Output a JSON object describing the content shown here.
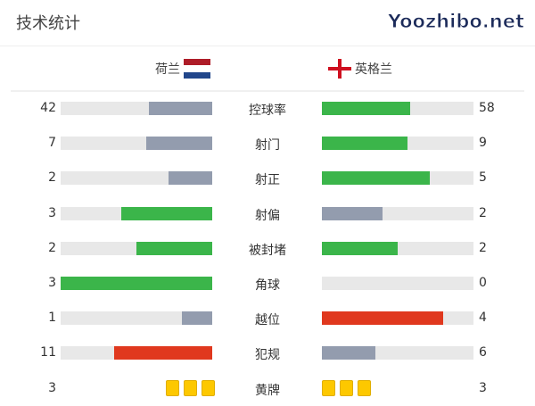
{
  "title": "技术统计",
  "home": {
    "name": "荷兰",
    "flag": [
      "#ae1c28",
      "#ffffff",
      "#21468b"
    ]
  },
  "away": {
    "name": "英格兰",
    "flag": "england-cross-icon"
  },
  "colors": {
    "green": "#3bb54a",
    "gray": "#939cae",
    "red": "#e0381e",
    "track": "#e8e8e8",
    "yellow": "#fdc800"
  },
  "stats": [
    {
      "label": "控球率",
      "home": "42",
      "away": "58",
      "home_color": "gray",
      "away_color": "green"
    },
    {
      "label": "射门",
      "home": "7",
      "away": "9",
      "home_color": "gray",
      "away_color": "green"
    },
    {
      "label": "射正",
      "home": "2",
      "away": "5",
      "home_color": "gray",
      "away_color": "green"
    },
    {
      "label": "射偏",
      "home": "3",
      "away": "2",
      "home_color": "green",
      "away_color": "gray"
    },
    {
      "label": "被封堵",
      "home": "2",
      "away": "2",
      "home_color": "green",
      "away_color": "green"
    },
    {
      "label": "角球",
      "home": "3",
      "away": "0",
      "home_color": "green",
      "away_color": "gray"
    },
    {
      "label": "越位",
      "home": "1",
      "away": "4",
      "home_color": "gray",
      "away_color": "red"
    },
    {
      "label": "犯规",
      "home": "11",
      "away": "6",
      "home_color": "red",
      "away_color": "gray"
    }
  ],
  "yellow_cards": {
    "label": "黄牌",
    "home": "3",
    "away": "3"
  },
  "watermark": "Yoozhibo.net"
}
